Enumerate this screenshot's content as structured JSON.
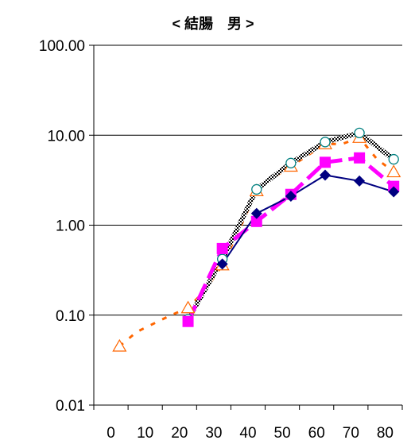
{
  "chart_data": {
    "type": "line",
    "title": "< 結腸　男 >",
    "xlabel": "",
    "ylabel": "",
    "y_scale": "log",
    "ylim": [
      0.01,
      100
    ],
    "y_ticks": [
      "100.00",
      "10.00",
      "1.00",
      "0.10",
      "0.01"
    ],
    "y_tick_values": [
      100,
      10,
      1,
      0.1,
      0.01
    ],
    "x_ticks": [
      "0",
      "10",
      "20",
      "30",
      "40",
      "50",
      "60",
      "70",
      "80"
    ],
    "x_tick_values": [
      0,
      10,
      20,
      30,
      40,
      50,
      60,
      70,
      80
    ],
    "xlim": [
      -5,
      85
    ],
    "grid": "horizontal",
    "legend": "none",
    "series": [
      {
        "marker": "triangle-open",
        "color": "#ff6600",
        "line_style": "dashed",
        "x": [
          2.5,
          7.5,
          17.5,
          22.5,
          27.5,
          32.5,
          37.5,
          42.5,
          47.5,
          52.5,
          57.5,
          62.5,
          67.5,
          72.5,
          77.5,
          82.5
        ],
        "y": [
          0.045,
          0.065,
          0.1,
          0.12,
          0.19,
          0.36,
          0.9,
          2.4,
          3.4,
          4.5,
          6.0,
          8.0,
          8.0,
          9.4,
          5.5,
          3.9
        ]
      },
      {
        "marker": "circle-open",
        "color": "#000000",
        "line_style": "checkered",
        "x": [
          22.5,
          32.5,
          42.5,
          52.5,
          62.5,
          72.5,
          82.5
        ],
        "y": [
          0.09,
          0.42,
          2.5,
          4.9,
          8.4,
          10.6,
          5.4
        ]
      },
      {
        "marker": "square",
        "color": "#ff00ff",
        "line_style": "long-dashed",
        "x": [
          22.5,
          32.5,
          42.5,
          52.5,
          62.5,
          72.5,
          82.5
        ],
        "y": [
          0.085,
          0.55,
          1.1,
          2.2,
          5.0,
          5.6,
          2.7
        ]
      },
      {
        "marker": "diamond",
        "color": "#000080",
        "line_style": "solid",
        "x": [
          32.5,
          42.5,
          52.5,
          62.5,
          72.5,
          82.5
        ],
        "y": [
          0.37,
          1.35,
          2.1,
          3.6,
          3.1,
          2.35
        ]
      }
    ]
  }
}
